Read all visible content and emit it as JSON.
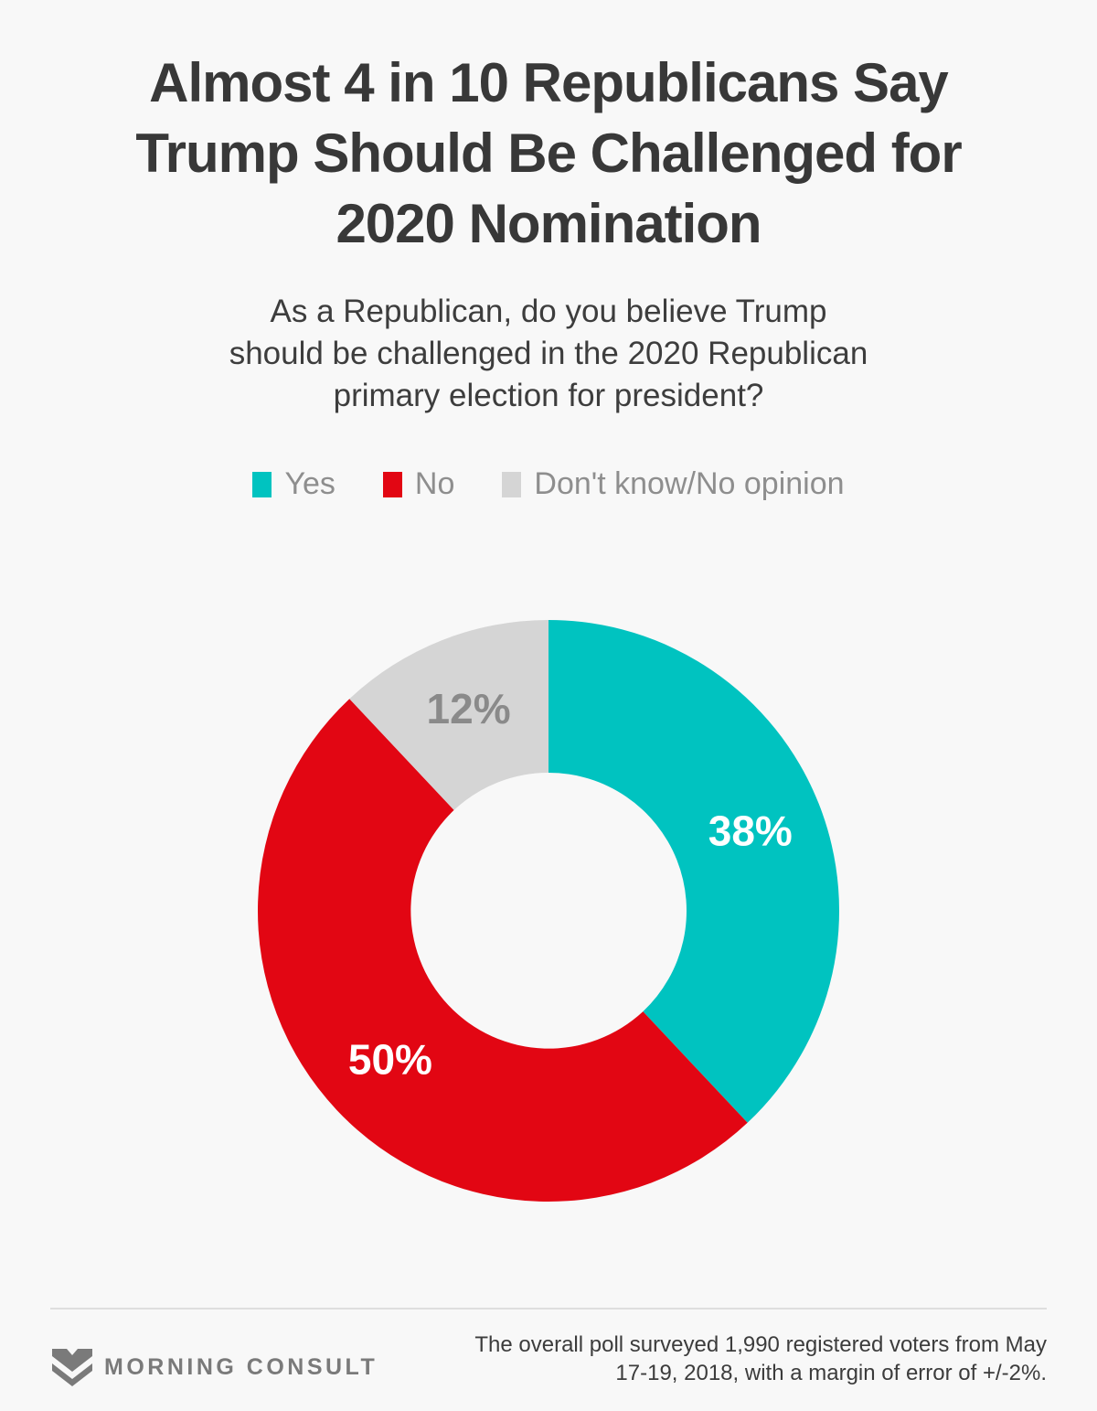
{
  "page": {
    "background": "#f8f8f8",
    "title": "Almost 4 in 10 Republicans Say\nTrump Should Be Challenged for\n2020 Nomination",
    "subtitle": "As a Republican, do you believe Trump\nshould be challenged in the 2020 Republican\nprimary election for president?"
  },
  "legend": {
    "position": "top-center",
    "items": [
      {
        "label": "Yes",
        "color": "#00c3c0"
      },
      {
        "label": "No",
        "color": "#e20613"
      },
      {
        "label": "Don't know/No opinion",
        "color": "#d5d5d5"
      }
    ]
  },
  "chart_data": {
    "type": "pie",
    "subtype": "donut",
    "title": "Almost 4 in 10 Republicans Say Trump Should Be Challenged for 2020 Nomination",
    "question": "As a Republican, do you believe Trump should be challenged in the 2020 Republican primary election for president?",
    "categories": [
      "Yes",
      "No",
      "Don't know/No opinion"
    ],
    "values": [
      38,
      50,
      12
    ],
    "unit": "%",
    "labels": [
      "38%",
      "50%",
      "12%"
    ],
    "colors": [
      "#00c3c0",
      "#e20613",
      "#d5d5d5"
    ],
    "label_colors": [
      "#ffffff",
      "#ffffff",
      "#8a8a8a"
    ],
    "start_angle_deg": 0,
    "direction": "clockwise",
    "inner_radius_ratio": 0.475,
    "legend_position": "top"
  },
  "footer": {
    "brand": "MORNING CONSULT",
    "note": "The overall poll surveyed 1,990 registered voters from May\n17-19, 2018, with a margin of error of +/-2%."
  }
}
